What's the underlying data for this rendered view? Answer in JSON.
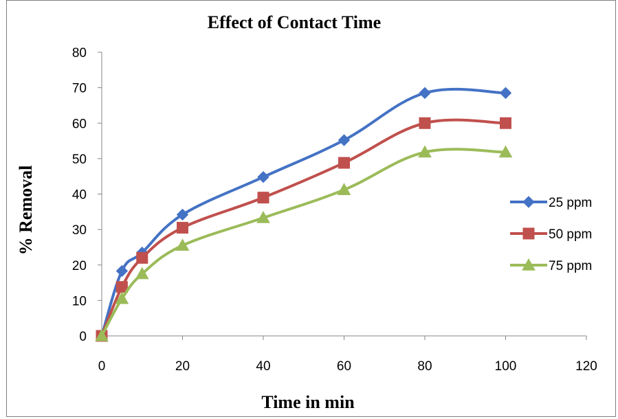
{
  "chart_data": {
    "type": "line",
    "title": "Effect of Contact Time",
    "xlabel": "Time in min",
    "ylabel": "% Removal",
    "xlim": [
      0,
      120
    ],
    "ylim": [
      0,
      80
    ],
    "xticks": [
      0,
      20,
      40,
      60,
      80,
      100,
      120
    ],
    "yticks": [
      0,
      10,
      20,
      30,
      40,
      50,
      60,
      70,
      80
    ],
    "grid": false,
    "legend_position": "right",
    "x": [
      0,
      5,
      10,
      20,
      40,
      60,
      80,
      100
    ],
    "series": [
      {
        "name": "25 ppm",
        "color": "#4472c4",
        "marker": "diamond",
        "values": [
          0,
          18.3,
          23.5,
          34.2,
          44.8,
          55.2,
          68.5,
          68.5
        ]
      },
      {
        "name": "50 ppm",
        "color": "#c0504d",
        "marker": "square",
        "values": [
          0,
          13.8,
          22.0,
          30.5,
          39.0,
          48.8,
          60.0,
          60.0
        ]
      },
      {
        "name": "75 ppm",
        "color": "#9bbb59",
        "marker": "triangle",
        "values": [
          0,
          10.5,
          17.5,
          25.5,
          33.3,
          41.2,
          51.8,
          51.8
        ]
      }
    ]
  }
}
